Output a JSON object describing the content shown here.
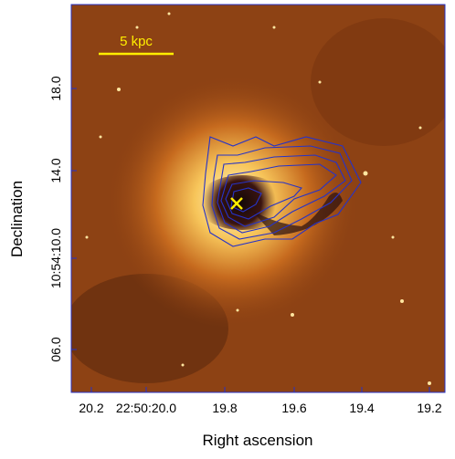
{
  "scale_bar": {
    "label": "5 kpc"
  },
  "x_axis": {
    "title": "Right ascension",
    "ticks": [
      "20.2",
      "22:50:20.0",
      "19.8",
      "19.6",
      "19.4",
      "19.2"
    ]
  },
  "y_axis": {
    "title": "Declination",
    "ticks": [
      "18.0",
      "14.0",
      "10:54:10.0",
      "06.0"
    ]
  }
}
